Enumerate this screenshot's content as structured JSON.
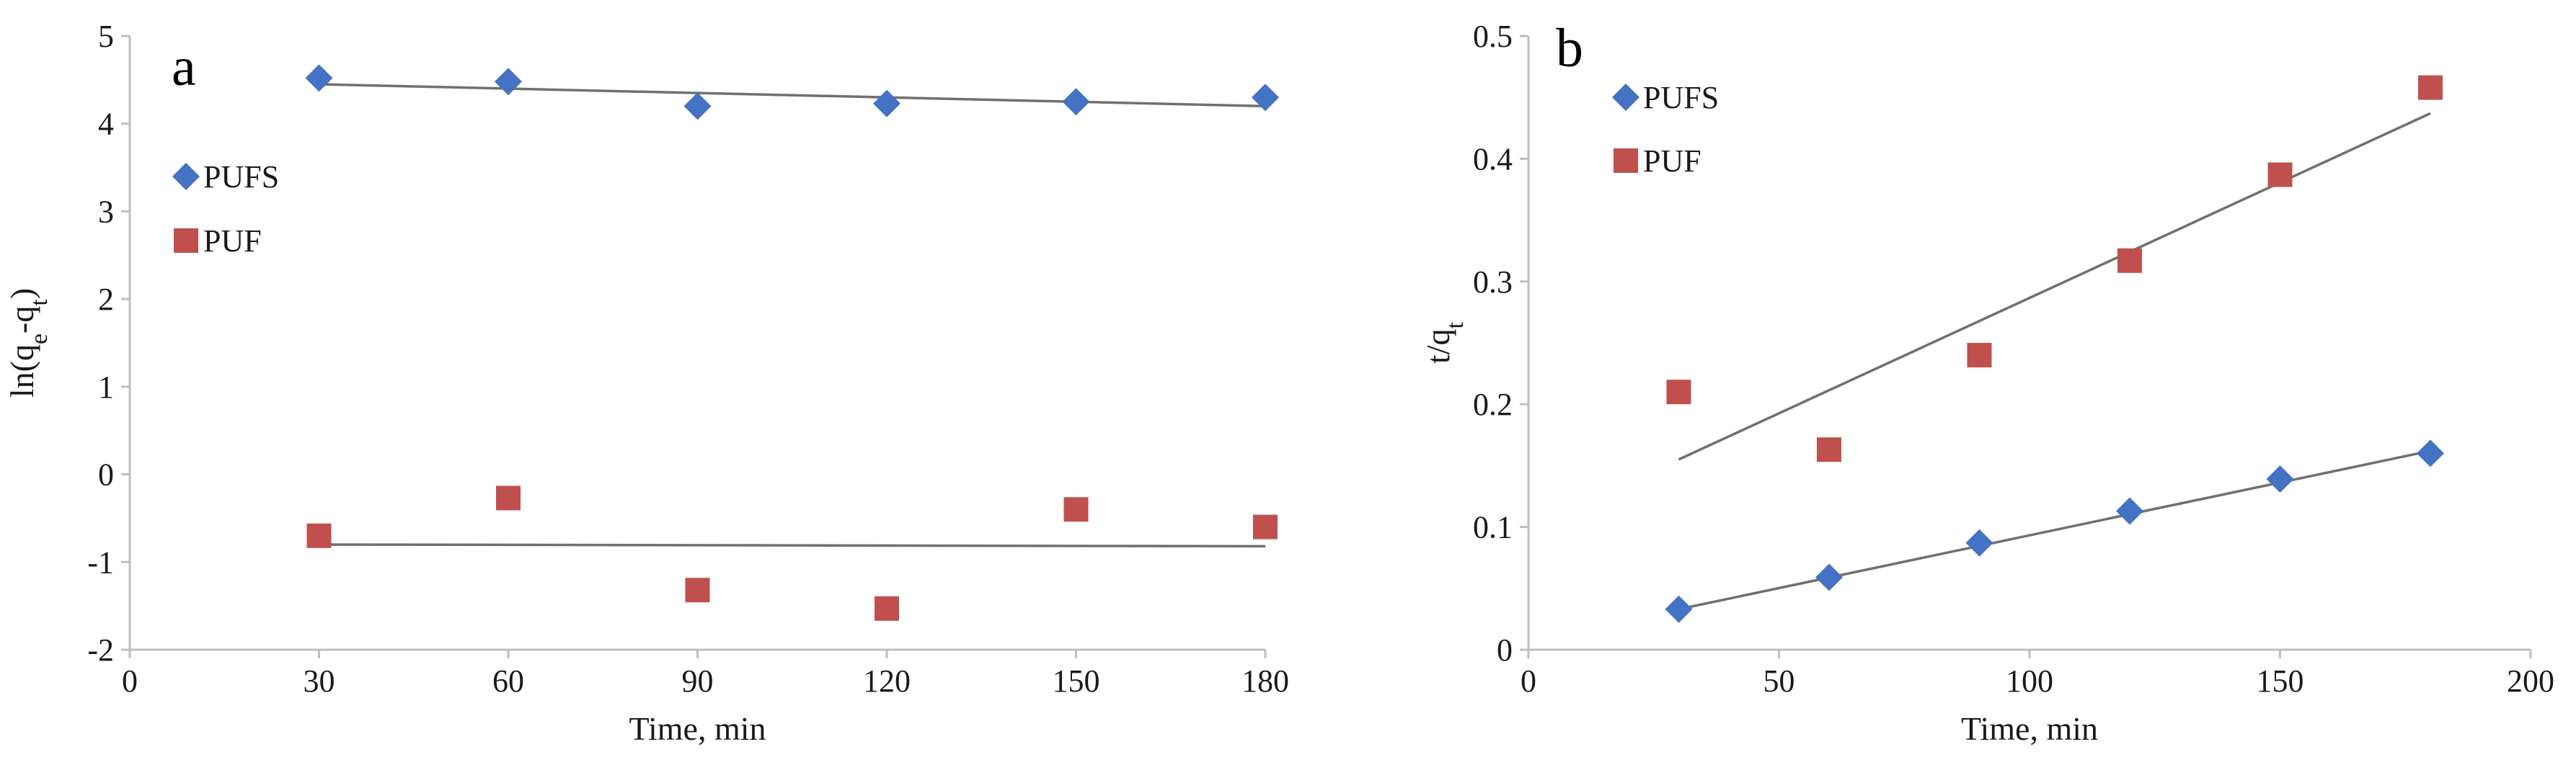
{
  "colors": {
    "PUFS": "#4472c4",
    "PUF": "#c0504d",
    "trend": "#707070"
  },
  "chart_data": [
    {
      "type": "scatter",
      "panel_label": "a",
      "title": "",
      "xlabel": "Time, min",
      "ylabel": "ln(q",
      "ylabel_sub1": "e",
      "ylabel_mid": "-q",
      "ylabel_sub2": "t",
      "ylabel_end": ")",
      "xlim": [
        0,
        180
      ],
      "ylim": [
        -2,
        5
      ],
      "xticks": [
        0,
        30,
        60,
        90,
        120,
        150,
        180
      ],
      "yticks": [
        -2,
        -1,
        0,
        1,
        2,
        3,
        4,
        5
      ],
      "legend": [
        "PUFS",
        "PUF"
      ],
      "series": [
        {
          "name": "PUFS",
          "marker": "diamond",
          "x": [
            30,
            60,
            90,
            120,
            150,
            180
          ],
          "y": [
            4.52,
            4.48,
            4.2,
            4.23,
            4.25,
            4.3
          ],
          "trend": [
            [
              30,
              4.45
            ],
            [
              180,
              4.2
            ]
          ]
        },
        {
          "name": "PUF",
          "marker": "square",
          "x": [
            30,
            60,
            90,
            120,
            150,
            180
          ],
          "y": [
            -0.7,
            -0.27,
            -1.32,
            -1.53,
            -0.4,
            -0.6
          ],
          "trend": [
            [
              30,
              -0.8
            ],
            [
              180,
              -0.82
            ]
          ]
        }
      ]
    },
    {
      "type": "scatter",
      "panel_label": "b",
      "title": "",
      "xlabel": "Time, min",
      "ylabel": "t/q",
      "ylabel_sub1": "t",
      "xlim": [
        0,
        200
      ],
      "ylim": [
        0,
        0.5
      ],
      "xticks": [
        0,
        50,
        100,
        150,
        200
      ],
      "yticks": [
        0,
        0.1,
        0.2,
        0.3,
        0.4,
        0.5
      ],
      "legend": [
        "PUFS",
        "PUF"
      ],
      "series": [
        {
          "name": "PUFS",
          "marker": "diamond",
          "x": [
            30,
            60,
            90,
            120,
            150,
            180
          ],
          "y": [
            0.033,
            0.059,
            0.087,
            0.113,
            0.139,
            0.16
          ],
          "trend": [
            [
              30,
              0.033
            ],
            [
              180,
              0.162
            ]
          ]
        },
        {
          "name": "PUF",
          "marker": "square",
          "x": [
            30,
            60,
            90,
            120,
            150,
            180
          ],
          "y": [
            0.21,
            0.163,
            0.24,
            0.317,
            0.387,
            0.458
          ],
          "trend": [
            [
              30,
              0.155
            ],
            [
              180,
              0.437
            ]
          ]
        }
      ]
    }
  ]
}
